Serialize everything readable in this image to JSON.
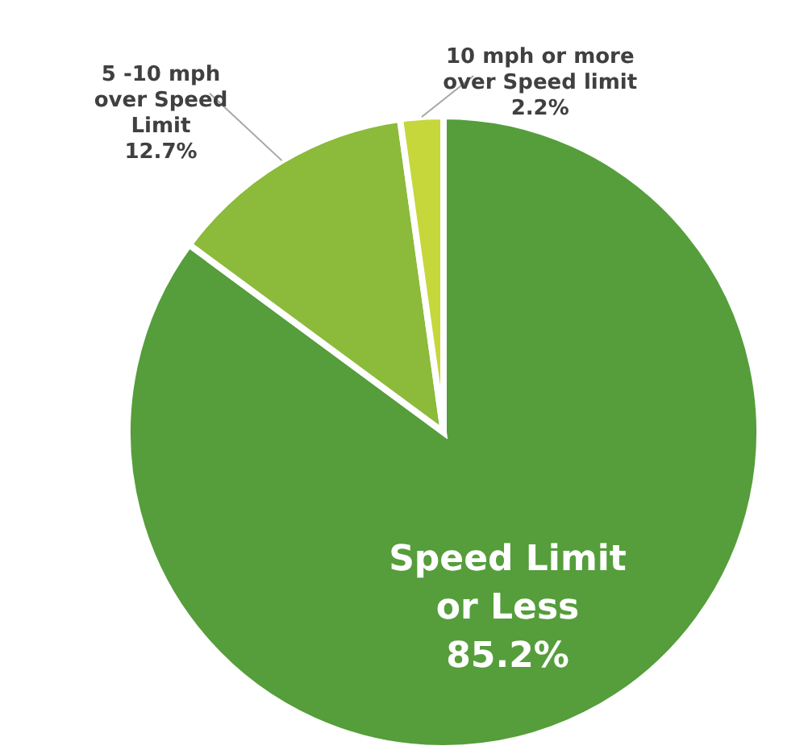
{
  "chart_data": {
    "type": "pie",
    "categories": [
      "Speed Limit or Less",
      "5 -10 mph over Speed Limit",
      "10 mph or more over Speed limit"
    ],
    "values": [
      85.2,
      12.7,
      2.2
    ],
    "colors": [
      "#559e3b",
      "#8cba3a",
      "#c5d73b"
    ],
    "value_labels": [
      "85.2%",
      "12.7%",
      "2.2%"
    ]
  }
}
